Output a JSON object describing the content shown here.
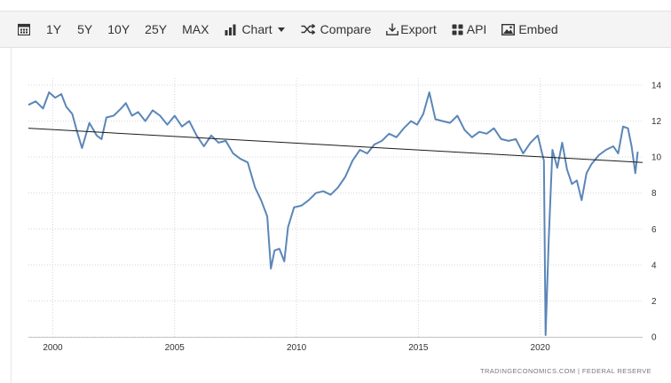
{
  "toolbar": {
    "items": [
      {
        "label": "1Y"
      },
      {
        "label": "5Y"
      },
      {
        "label": "10Y"
      },
      {
        "label": "25Y"
      },
      {
        "label": "MAX"
      },
      {
        "label": "Chart"
      },
      {
        "label": "Compare"
      },
      {
        "label": "Export"
      },
      {
        "label": "API"
      },
      {
        "label": "Embed"
      }
    ]
  },
  "source": "TRADINGECONOMICS.COM | FEDERAL RESERVE",
  "chart_data": {
    "type": "line",
    "title": "",
    "xlabel": "",
    "ylabel": "",
    "xlim": [
      1999.0,
      2024.2
    ],
    "ylim": [
      0,
      14
    ],
    "x_ticks": [
      2000,
      2005,
      2010,
      2015,
      2020
    ],
    "y_ticks": [
      0,
      2,
      4,
      6,
      8,
      10,
      12,
      14
    ],
    "y_axis_side": "right",
    "grid": "dotted",
    "legend": "none",
    "series": [
      {
        "color": "#5b86b8",
        "points": [
          [
            1999.0,
            12.9
          ],
          [
            1999.3,
            13.1
          ],
          [
            1999.6,
            12.7
          ],
          [
            1999.85,
            13.6
          ],
          [
            2000.1,
            13.3
          ],
          [
            2000.35,
            13.5
          ],
          [
            2000.55,
            12.8
          ],
          [
            2000.8,
            12.4
          ],
          [
            2001.0,
            11.4
          ],
          [
            2001.2,
            10.5
          ],
          [
            2001.5,
            11.9
          ],
          [
            2001.8,
            11.2
          ],
          [
            2002.0,
            11.0
          ],
          [
            2002.2,
            12.2
          ],
          [
            2002.5,
            12.3
          ],
          [
            2002.8,
            12.7
          ],
          [
            2003.0,
            13.0
          ],
          [
            2003.25,
            12.3
          ],
          [
            2003.5,
            12.5
          ],
          [
            2003.8,
            12.0
          ],
          [
            2004.1,
            12.6
          ],
          [
            2004.4,
            12.3
          ],
          [
            2004.7,
            11.8
          ],
          [
            2005.0,
            12.3
          ],
          [
            2005.3,
            11.7
          ],
          [
            2005.6,
            12.0
          ],
          [
            2005.9,
            11.2
          ],
          [
            2006.2,
            10.6
          ],
          [
            2006.5,
            11.2
          ],
          [
            2006.8,
            10.8
          ],
          [
            2007.1,
            10.9
          ],
          [
            2007.4,
            10.2
          ],
          [
            2007.7,
            9.9
          ],
          [
            2008.0,
            9.7
          ],
          [
            2008.3,
            8.3
          ],
          [
            2008.55,
            7.6
          ],
          [
            2008.8,
            6.7
          ],
          [
            2008.95,
            3.8
          ],
          [
            2009.1,
            4.8
          ],
          [
            2009.3,
            4.9
          ],
          [
            2009.5,
            4.2
          ],
          [
            2009.65,
            6.1
          ],
          [
            2009.9,
            7.2
          ],
          [
            2010.2,
            7.3
          ],
          [
            2010.5,
            7.6
          ],
          [
            2010.8,
            8.0
          ],
          [
            2011.1,
            8.1
          ],
          [
            2011.4,
            7.9
          ],
          [
            2011.7,
            8.3
          ],
          [
            2012.0,
            8.9
          ],
          [
            2012.3,
            9.8
          ],
          [
            2012.6,
            10.4
          ],
          [
            2012.9,
            10.2
          ],
          [
            2013.2,
            10.7
          ],
          [
            2013.5,
            10.9
          ],
          [
            2013.8,
            11.3
          ],
          [
            2014.1,
            11.1
          ],
          [
            2014.4,
            11.6
          ],
          [
            2014.7,
            12.0
          ],
          [
            2014.95,
            11.8
          ],
          [
            2015.2,
            12.4
          ],
          [
            2015.45,
            13.6
          ],
          [
            2015.7,
            12.1
          ],
          [
            2016.0,
            12.0
          ],
          [
            2016.3,
            11.9
          ],
          [
            2016.6,
            12.3
          ],
          [
            2016.9,
            11.5
          ],
          [
            2017.2,
            11.1
          ],
          [
            2017.5,
            11.4
          ],
          [
            2017.8,
            11.3
          ],
          [
            2018.1,
            11.6
          ],
          [
            2018.4,
            11.0
          ],
          [
            2018.7,
            10.9
          ],
          [
            2019.0,
            11.0
          ],
          [
            2019.3,
            10.2
          ],
          [
            2019.6,
            10.8
          ],
          [
            2019.9,
            11.2
          ],
          [
            2020.15,
            9.8
          ],
          [
            2020.22,
            0.1
          ],
          [
            2020.35,
            5.5
          ],
          [
            2020.5,
            10.4
          ],
          [
            2020.7,
            9.4
          ],
          [
            2020.9,
            10.8
          ],
          [
            2021.1,
            9.3
          ],
          [
            2021.3,
            8.5
          ],
          [
            2021.5,
            8.7
          ],
          [
            2021.7,
            7.6
          ],
          [
            2021.9,
            9.1
          ],
          [
            2022.1,
            9.6
          ],
          [
            2022.4,
            10.1
          ],
          [
            2022.7,
            10.4
          ],
          [
            2023.0,
            10.6
          ],
          [
            2023.2,
            10.2
          ],
          [
            2023.4,
            11.7
          ],
          [
            2023.6,
            11.6
          ],
          [
            2023.75,
            10.6
          ],
          [
            2023.9,
            9.1
          ],
          [
            2024.0,
            10.3
          ]
        ]
      }
    ],
    "trend_line": {
      "color": "#1a1a1a",
      "from": [
        1999.0,
        11.6
      ],
      "to": [
        2024.2,
        9.7
      ]
    }
  }
}
